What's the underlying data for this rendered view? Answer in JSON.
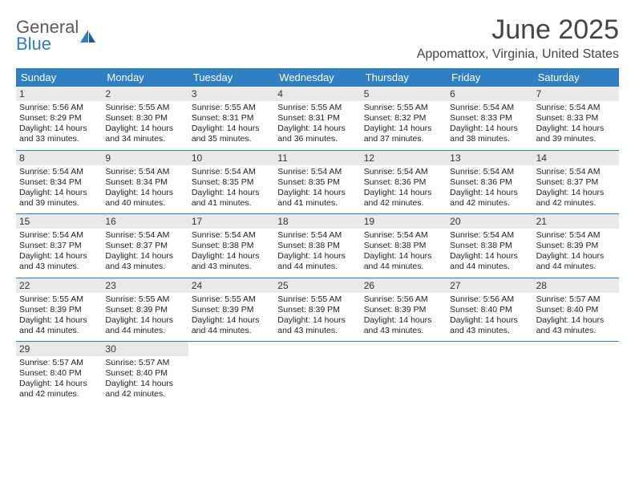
{
  "brand": {
    "line1": "General",
    "line2": "Blue"
  },
  "title": "June 2025",
  "location": "Appomattox, Virginia, United States",
  "colors": {
    "header_bg": "#2f7fc2",
    "header_text": "#ffffff",
    "date_bg": "#e9e9e9",
    "rule": "#2f7fc2",
    "brand_gray": "#5a5a5a",
    "brand_blue": "#2f7fc2"
  },
  "font": {
    "family": "Arial",
    "title_size_pt": 26,
    "location_size_pt": 12,
    "header_size_pt": 10,
    "body_size_pt": 8
  },
  "day_names": [
    "Sunday",
    "Monday",
    "Tuesday",
    "Wednesday",
    "Thursday",
    "Friday",
    "Saturday"
  ],
  "weeks": [
    [
      {
        "date": "1",
        "sunrise": "Sunrise: 5:56 AM",
        "sunset": "Sunset: 8:29 PM",
        "daylight": "Daylight: 14 hours and 33 minutes."
      },
      {
        "date": "2",
        "sunrise": "Sunrise: 5:55 AM",
        "sunset": "Sunset: 8:30 PM",
        "daylight": "Daylight: 14 hours and 34 minutes."
      },
      {
        "date": "3",
        "sunrise": "Sunrise: 5:55 AM",
        "sunset": "Sunset: 8:31 PM",
        "daylight": "Daylight: 14 hours and 35 minutes."
      },
      {
        "date": "4",
        "sunrise": "Sunrise: 5:55 AM",
        "sunset": "Sunset: 8:31 PM",
        "daylight": "Daylight: 14 hours and 36 minutes."
      },
      {
        "date": "5",
        "sunrise": "Sunrise: 5:55 AM",
        "sunset": "Sunset: 8:32 PM",
        "daylight": "Daylight: 14 hours and 37 minutes."
      },
      {
        "date": "6",
        "sunrise": "Sunrise: 5:54 AM",
        "sunset": "Sunset: 8:33 PM",
        "daylight": "Daylight: 14 hours and 38 minutes."
      },
      {
        "date": "7",
        "sunrise": "Sunrise: 5:54 AM",
        "sunset": "Sunset: 8:33 PM",
        "daylight": "Daylight: 14 hours and 39 minutes."
      }
    ],
    [
      {
        "date": "8",
        "sunrise": "Sunrise: 5:54 AM",
        "sunset": "Sunset: 8:34 PM",
        "daylight": "Daylight: 14 hours and 39 minutes."
      },
      {
        "date": "9",
        "sunrise": "Sunrise: 5:54 AM",
        "sunset": "Sunset: 8:34 PM",
        "daylight": "Daylight: 14 hours and 40 minutes."
      },
      {
        "date": "10",
        "sunrise": "Sunrise: 5:54 AM",
        "sunset": "Sunset: 8:35 PM",
        "daylight": "Daylight: 14 hours and 41 minutes."
      },
      {
        "date": "11",
        "sunrise": "Sunrise: 5:54 AM",
        "sunset": "Sunset: 8:35 PM",
        "daylight": "Daylight: 14 hours and 41 minutes."
      },
      {
        "date": "12",
        "sunrise": "Sunrise: 5:54 AM",
        "sunset": "Sunset: 8:36 PM",
        "daylight": "Daylight: 14 hours and 42 minutes."
      },
      {
        "date": "13",
        "sunrise": "Sunrise: 5:54 AM",
        "sunset": "Sunset: 8:36 PM",
        "daylight": "Daylight: 14 hours and 42 minutes."
      },
      {
        "date": "14",
        "sunrise": "Sunrise: 5:54 AM",
        "sunset": "Sunset: 8:37 PM",
        "daylight": "Daylight: 14 hours and 42 minutes."
      }
    ],
    [
      {
        "date": "15",
        "sunrise": "Sunrise: 5:54 AM",
        "sunset": "Sunset: 8:37 PM",
        "daylight": "Daylight: 14 hours and 43 minutes."
      },
      {
        "date": "16",
        "sunrise": "Sunrise: 5:54 AM",
        "sunset": "Sunset: 8:37 PM",
        "daylight": "Daylight: 14 hours and 43 minutes."
      },
      {
        "date": "17",
        "sunrise": "Sunrise: 5:54 AM",
        "sunset": "Sunset: 8:38 PM",
        "daylight": "Daylight: 14 hours and 43 minutes."
      },
      {
        "date": "18",
        "sunrise": "Sunrise: 5:54 AM",
        "sunset": "Sunset: 8:38 PM",
        "daylight": "Daylight: 14 hours and 44 minutes."
      },
      {
        "date": "19",
        "sunrise": "Sunrise: 5:54 AM",
        "sunset": "Sunset: 8:38 PM",
        "daylight": "Daylight: 14 hours and 44 minutes."
      },
      {
        "date": "20",
        "sunrise": "Sunrise: 5:54 AM",
        "sunset": "Sunset: 8:38 PM",
        "daylight": "Daylight: 14 hours and 44 minutes."
      },
      {
        "date": "21",
        "sunrise": "Sunrise: 5:54 AM",
        "sunset": "Sunset: 8:39 PM",
        "daylight": "Daylight: 14 hours and 44 minutes."
      }
    ],
    [
      {
        "date": "22",
        "sunrise": "Sunrise: 5:55 AM",
        "sunset": "Sunset: 8:39 PM",
        "daylight": "Daylight: 14 hours and 44 minutes."
      },
      {
        "date": "23",
        "sunrise": "Sunrise: 5:55 AM",
        "sunset": "Sunset: 8:39 PM",
        "daylight": "Daylight: 14 hours and 44 minutes."
      },
      {
        "date": "24",
        "sunrise": "Sunrise: 5:55 AM",
        "sunset": "Sunset: 8:39 PM",
        "daylight": "Daylight: 14 hours and 44 minutes."
      },
      {
        "date": "25",
        "sunrise": "Sunrise: 5:55 AM",
        "sunset": "Sunset: 8:39 PM",
        "daylight": "Daylight: 14 hours and 43 minutes."
      },
      {
        "date": "26",
        "sunrise": "Sunrise: 5:56 AM",
        "sunset": "Sunset: 8:39 PM",
        "daylight": "Daylight: 14 hours and 43 minutes."
      },
      {
        "date": "27",
        "sunrise": "Sunrise: 5:56 AM",
        "sunset": "Sunset: 8:40 PM",
        "daylight": "Daylight: 14 hours and 43 minutes."
      },
      {
        "date": "28",
        "sunrise": "Sunrise: 5:57 AM",
        "sunset": "Sunset: 8:40 PM",
        "daylight": "Daylight: 14 hours and 43 minutes."
      }
    ],
    [
      {
        "date": "29",
        "sunrise": "Sunrise: 5:57 AM",
        "sunset": "Sunset: 8:40 PM",
        "daylight": "Daylight: 14 hours and 42 minutes."
      },
      {
        "date": "30",
        "sunrise": "Sunrise: 5:57 AM",
        "sunset": "Sunset: 8:40 PM",
        "daylight": "Daylight: 14 hours and 42 minutes."
      },
      null,
      null,
      null,
      null,
      null
    ]
  ]
}
